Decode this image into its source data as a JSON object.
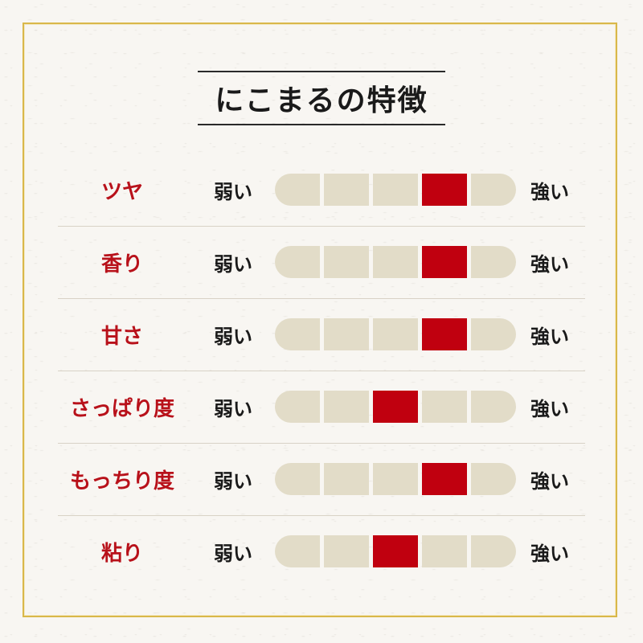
{
  "title": "にこまるの特徴",
  "weak_label": "弱い",
  "strong_label": "強い",
  "colors": {
    "accent": "#c0000f",
    "label": "#b8111a",
    "segment": "#e2dcc8",
    "frame": "#d9b84a"
  },
  "scale_steps": 5,
  "rows": [
    {
      "label": "ツヤ",
      "level": 4
    },
    {
      "label": "香り",
      "level": 4
    },
    {
      "label": "甘さ",
      "level": 4
    },
    {
      "label": "さっぱり度",
      "level": 3
    },
    {
      "label": "もっちり度",
      "level": 4
    },
    {
      "label": "粘り",
      "level": 3
    }
  ]
}
